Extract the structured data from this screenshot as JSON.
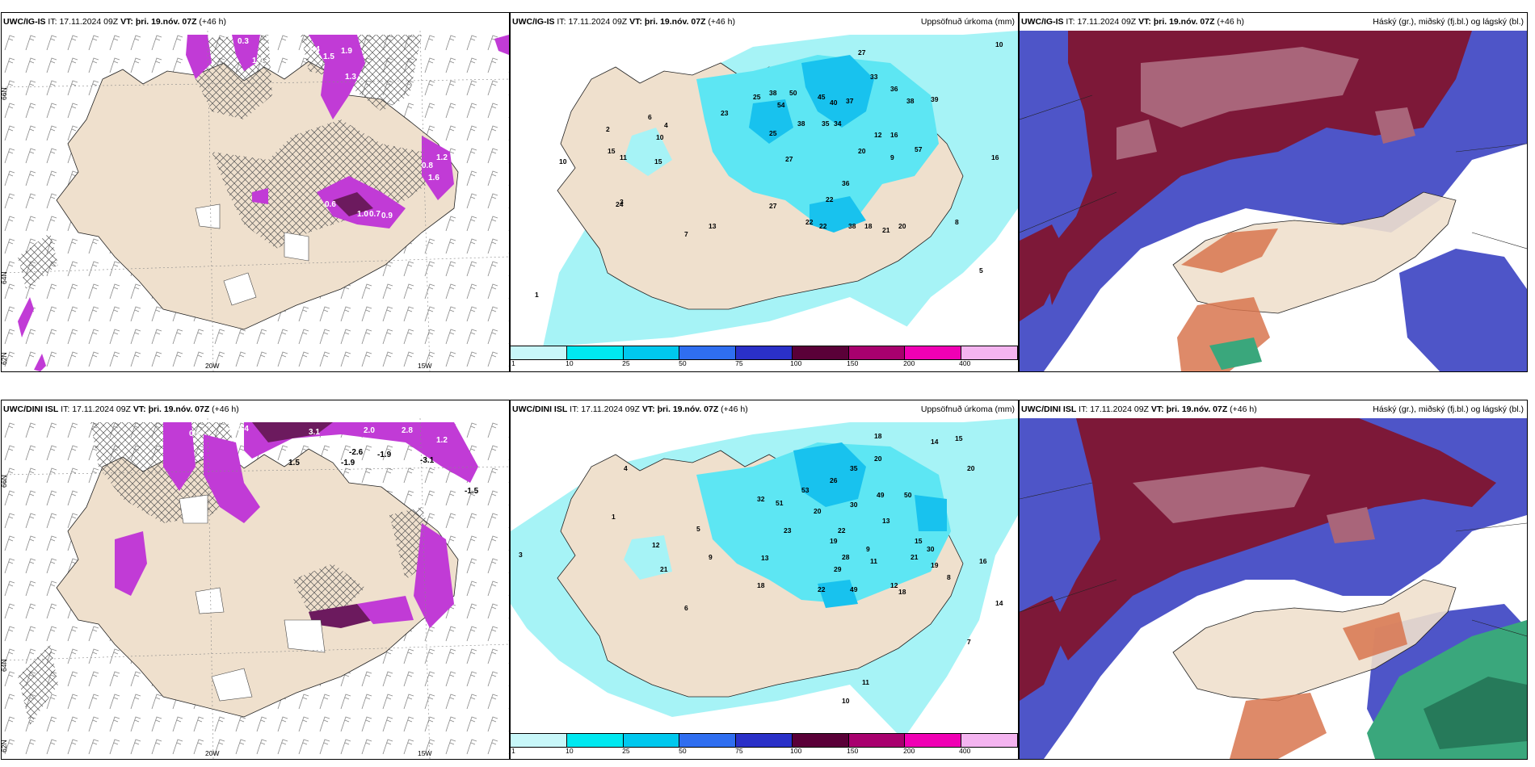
{
  "panels": {
    "tl": {
      "model": "UWC/IG-IS",
      "it_label": "IT:",
      "it": "17.11.2024 09Z",
      "vt_label": "VT:",
      "vt": "þri. 19.nóv. 07Z",
      "lead": "(+46 h)",
      "right_title": "",
      "axes": {
        "lat1": "66N",
        "lat2": "64N",
        "lat3": "62N",
        "lon1": "20W",
        "lon2": "15W"
      }
    },
    "tm": {
      "model": "UWC/IG-IS",
      "it_label": "IT:",
      "it": "17.11.2024 09Z",
      "vt_label": "VT:",
      "vt": "þri. 19.nóv. 07Z",
      "lead": "(+46 h)",
      "right_title": "Uppsöfnuð úrkoma (mm)"
    },
    "tr": {
      "model": "UWC/IG-IS",
      "it_label": "IT:",
      "it": "17.11.2024 09Z",
      "vt_label": "VT:",
      "vt": "þri. 19.nóv. 07Z",
      "lead": "(+46 h)",
      "right_title": "Háský (gr.), miðský (fj.bl.) og lágský (bl.)"
    },
    "bl": {
      "model": "UWC/DINI ISL",
      "it_label": "IT:",
      "it": "17.11.2024 09Z",
      "vt_label": "VT:",
      "vt": "þri. 19.nóv. 07Z",
      "lead": "(+46 h)",
      "right_title": "",
      "axes": {
        "lat1": "66N",
        "lat2": "64N",
        "lat3": "62N",
        "lon1": "20W",
        "lon2": "15W"
      }
    },
    "bm": {
      "model": "UWC/DINI ISL",
      "it_label": "IT:",
      "it": "17.11.2024 09Z",
      "vt_label": "VT:",
      "vt": "þri. 19.nóv. 07Z",
      "lead": "(+46 h)",
      "right_title": "Uppsöfnuð úrkoma (mm)"
    },
    "br": {
      "model": "UWC/DINI ISL",
      "it_label": "IT:",
      "it": "17.11.2024 09Z",
      "vt_label": "VT:",
      "vt": "þri. 19.nóv. 07Z",
      "lead": "(+46 h)",
      "right_title": "Háský (gr.), miðský (fj.bl.) og lágský (bl.)"
    }
  },
  "legend": {
    "ticks": [
      "1",
      "10",
      "25",
      "50",
      "75",
      "100",
      "150",
      "200",
      "400"
    ],
    "colors": [
      "#c8f7f9",
      "#00e8f0",
      "#00c8ee",
      "#2f6ef0",
      "#2a30c8",
      "#5a0038",
      "#a8006e",
      "#f000b4",
      "#f4b4f0"
    ]
  },
  "temps_tl": [
    "0.3",
    "1.0",
    "1.5",
    "1.9",
    "1.3",
    "1.4",
    "0.8",
    "0.6",
    "1.0",
    "0.7",
    "0.9",
    "1.2",
    "1.6"
  ],
  "temps_bl": [
    "0.4",
    "0.5",
    "2.8",
    "2.0",
    "3.1",
    "1.5",
    "-1.9",
    "-2.6",
    "-1.9",
    "-3.1",
    "-1.5",
    "1.2"
  ],
  "precip_tm": [
    "27",
    "23",
    "33",
    "36",
    "38",
    "25",
    "38",
    "54",
    "50",
    "45",
    "40",
    "37",
    "39",
    "25",
    "38",
    "35",
    "34",
    "27",
    "20",
    "12",
    "16",
    "11",
    "10",
    "15",
    "10",
    "9",
    "27",
    "36",
    "22",
    "22",
    "22",
    "38",
    "18",
    "21",
    "20",
    "13",
    "24",
    "7",
    "6",
    "15",
    "2",
    "4",
    "3",
    "1",
    "5",
    "8",
    "10",
    "16",
    "57"
  ],
  "precip_bm": [
    "18",
    "20",
    "14",
    "15",
    "20",
    "35",
    "26",
    "49",
    "50",
    "32",
    "51",
    "53",
    "30",
    "20",
    "23",
    "22",
    "29",
    "19",
    "9",
    "13",
    "21",
    "18",
    "28",
    "11",
    "12",
    "15",
    "30",
    "8",
    "16",
    "14",
    "19",
    "18",
    "49",
    "22",
    "13",
    "10",
    "11",
    "3",
    "1",
    "4",
    "12",
    "21",
    "9",
    "5",
    "6",
    "7"
  ],
  "colors": {
    "land": "#efe0cd",
    "precip_light": "#a6f3f6",
    "precip_mid": "#5de6f3",
    "precip_high": "#18c2ee",
    "purple": "#c13bd6",
    "dark_purple": "#6c1a5e",
    "cloud_high": "#7d1838",
    "cloud_mid": "#a9657a",
    "cloud_low": "#4e55c8",
    "cloud_green": "#3aa77c"
  }
}
